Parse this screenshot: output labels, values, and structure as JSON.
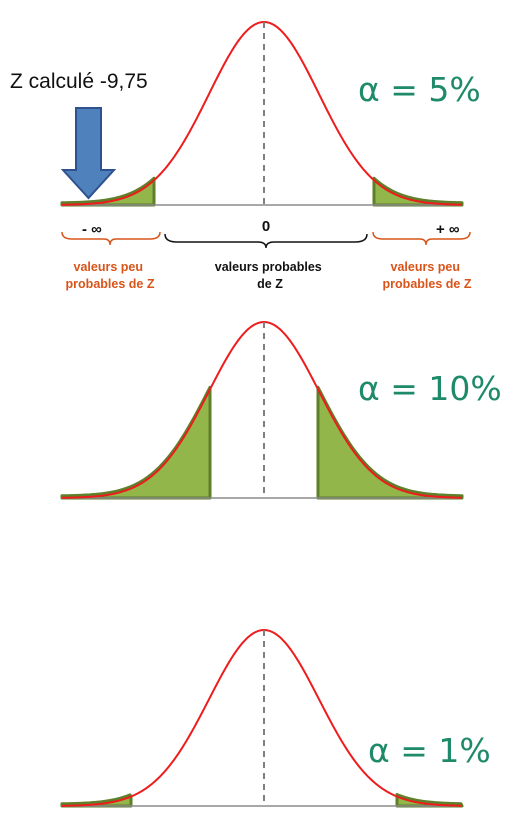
{
  "annotation": {
    "label": "Z calculé -9,75"
  },
  "axis": {
    "minus_infinity": "- ∞",
    "zero": "0",
    "plus_infinity": "+ ∞"
  },
  "regions": {
    "left": [
      "valeurs peu",
      "probables de Z"
    ],
    "middle": [
      "valeurs probables",
      "de Z"
    ],
    "right": [
      "valeurs peu",
      "probables de Z"
    ]
  },
  "curves": [
    {
      "alpha_label": "α = 5%",
      "alpha": 0.05
    },
    {
      "alpha_label": "α = 10%",
      "alpha": 0.1
    },
    {
      "alpha_label": "α = 1%",
      "alpha": 0.01
    }
  ],
  "colors": {
    "curve": "#ee1c1c",
    "tail_fill": "#92b649",
    "tail_stroke": "#5f7f2a",
    "axis": "#8c8c8c",
    "arrow": "#4f81bd",
    "arrow_stroke": "#2f528f",
    "alpha_text": "#1e8a6a",
    "region_text": "#d9541a"
  }
}
